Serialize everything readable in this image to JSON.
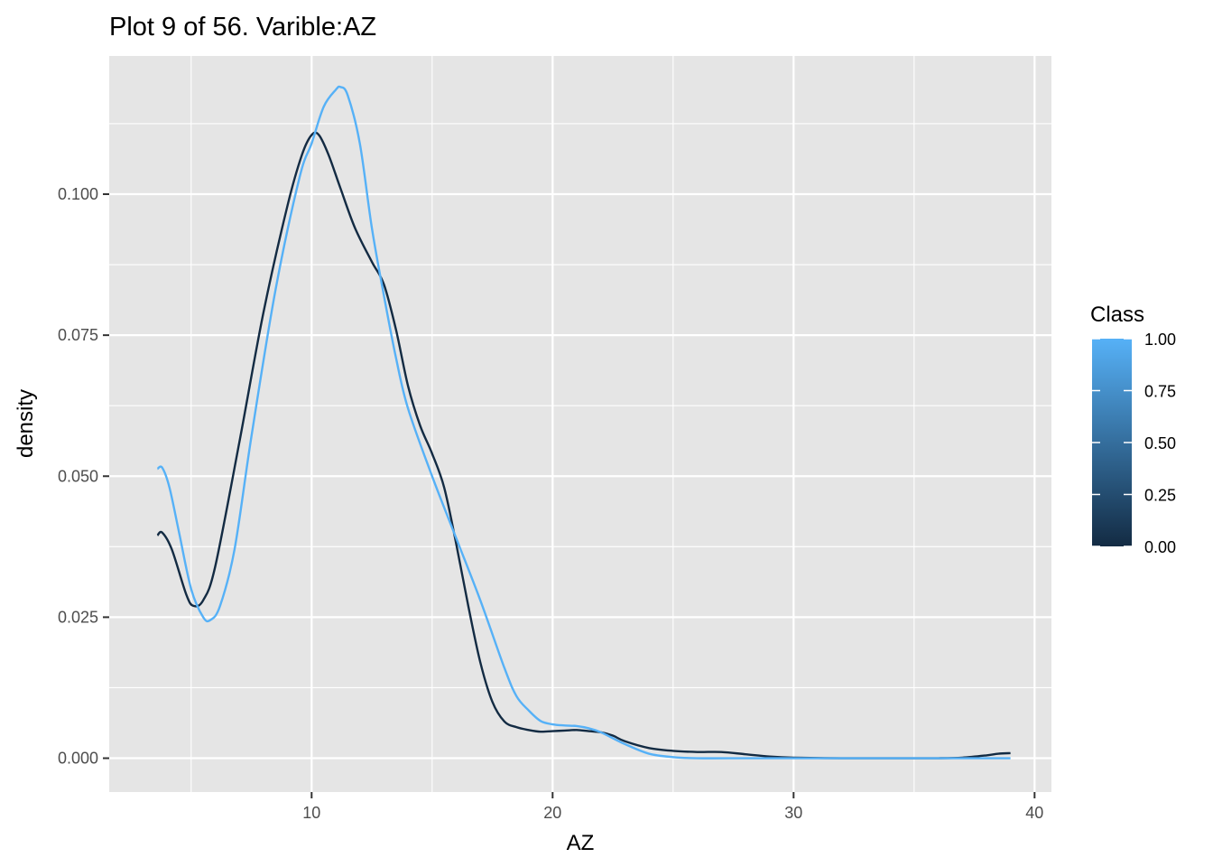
{
  "chart_data": {
    "type": "line",
    "title": "Plot 9 of 56. Varible:AZ",
    "xlabel": "AZ",
    "ylabel": "density",
    "xlim": [
      1.6,
      40.7
    ],
    "ylim": [
      -0.006,
      0.1245
    ],
    "xticks": [
      10,
      20,
      30,
      40
    ],
    "xticks_minor": [
      5,
      15,
      25,
      35
    ],
    "yticks": [
      0.0,
      0.025,
      0.05,
      0.075,
      0.1
    ],
    "yticks_minor": [
      0.0125,
      0.0375,
      0.0625,
      0.0875,
      0.1125
    ],
    "ytick_labels": [
      "0.000",
      "0.025",
      "0.050",
      "0.075",
      "0.100"
    ],
    "grid": true,
    "panel_background": "#e5e5e5",
    "legend": {
      "title": "Class",
      "placement": "right",
      "type": "colorbar",
      "breaks": [
        0.0,
        0.25,
        0.5,
        0.75,
        1.0
      ],
      "labels": [
        "0.00",
        "0.25",
        "0.50",
        "0.75",
        "1.00"
      ],
      "color_low": "#132b43",
      "color_high": "#56b1f7"
    },
    "series": [
      {
        "class_value": 0,
        "color": "#132b43",
        "x": [
          3.6,
          3.8,
          4.2,
          4.8,
          5.1,
          5.5,
          6.0,
          7.0,
          8.0,
          9.0,
          9.6,
          10.0,
          10.3,
          10.7,
          11.2,
          11.8,
          12.5,
          13.0,
          13.5,
          14.0,
          14.5,
          15.0,
          15.5,
          16.0,
          16.5,
          17.0,
          17.5,
          18.0,
          18.5,
          19.0,
          19.5,
          20.0,
          20.5,
          21.0,
          21.5,
          22.0,
          22.5,
          23.0,
          24.0,
          25.0,
          26.0,
          27.0,
          28.0,
          29.0,
          30.0,
          32.0,
          34.0,
          36.0,
          37.0,
          38.0,
          38.5,
          39.0
        ],
        "y": [
          0.0395,
          0.04,
          0.037,
          0.029,
          0.027,
          0.028,
          0.034,
          0.056,
          0.079,
          0.098,
          0.107,
          0.1105,
          0.1105,
          0.107,
          0.101,
          0.094,
          0.088,
          0.084,
          0.076,
          0.066,
          0.059,
          0.054,
          0.048,
          0.038,
          0.027,
          0.017,
          0.01,
          0.0065,
          0.0055,
          0.005,
          0.0047,
          0.0048,
          0.0049,
          0.005,
          0.0048,
          0.0046,
          0.004,
          0.003,
          0.0018,
          0.0013,
          0.0011,
          0.0011,
          0.0007,
          0.0003,
          0.0001,
          0.0,
          0.0,
          0.0,
          0.0001,
          0.0005,
          0.0008,
          0.0009
        ]
      },
      {
        "class_value": 1,
        "color": "#56b1f7",
        "x": [
          3.6,
          3.8,
          4.1,
          4.5,
          5.0,
          5.5,
          5.8,
          6.2,
          6.8,
          7.5,
          8.5,
          9.5,
          10.0,
          10.5,
          11.0,
          11.2,
          11.5,
          12.0,
          12.5,
          13.0,
          13.5,
          14.0,
          15.0,
          16.0,
          17.0,
          18.0,
          18.5,
          19.0,
          19.5,
          20.0,
          20.5,
          21.0,
          21.5,
          22.0,
          23.0,
          24.0,
          25.0,
          26.0,
          28.0,
          30.0,
          35.0,
          39.0
        ],
        "y": [
          0.0513,
          0.0515,
          0.048,
          0.04,
          0.03,
          0.025,
          0.0245,
          0.027,
          0.037,
          0.057,
          0.083,
          0.103,
          0.109,
          0.1155,
          0.1185,
          0.119,
          0.1175,
          0.109,
          0.094,
          0.082,
          0.071,
          0.062,
          0.05,
          0.039,
          0.028,
          0.016,
          0.011,
          0.0085,
          0.0066,
          0.006,
          0.0058,
          0.0057,
          0.0053,
          0.0046,
          0.0025,
          0.0008,
          0.0002,
          0.0,
          0.0,
          0.0,
          0.0,
          0.0
        ]
      }
    ]
  }
}
